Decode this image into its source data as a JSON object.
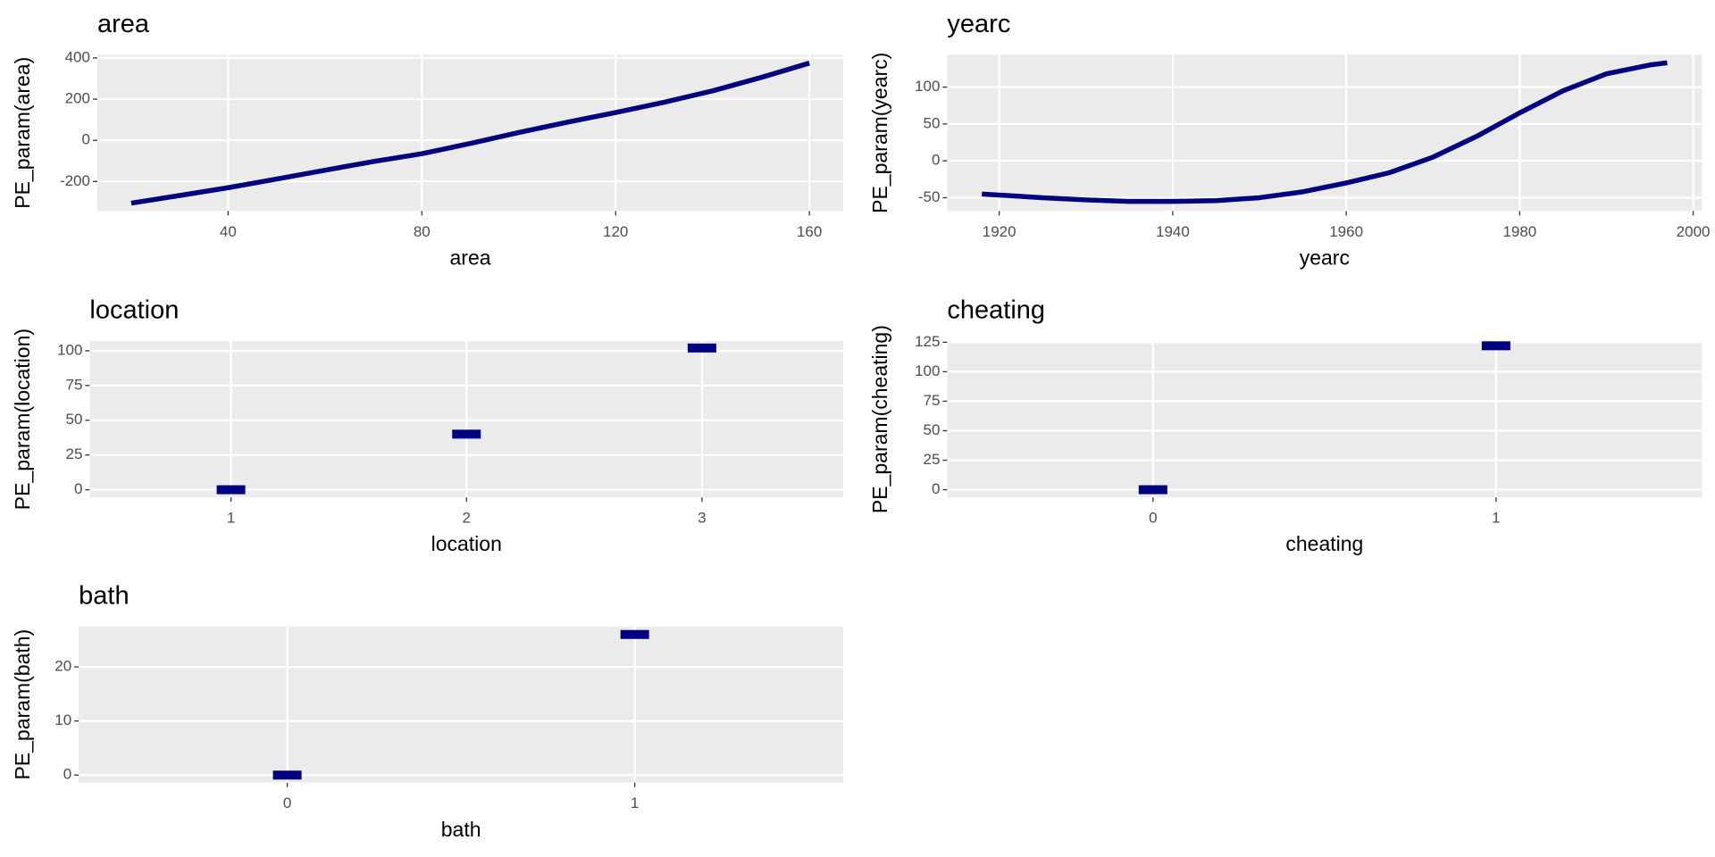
{
  "chart_data": [
    {
      "type": "line",
      "title": "area",
      "x_label": "area",
      "y_label": "PE_param(area)",
      "x": [
        20,
        30,
        40,
        50,
        60,
        70,
        80,
        90,
        100,
        110,
        120,
        130,
        140,
        150,
        160
      ],
      "values": [
        -305,
        -268,
        -230,
        -188,
        -145,
        -103,
        -65,
        -15,
        38,
        88,
        135,
        185,
        240,
        305,
        375
      ],
      "color": "#000080",
      "xlim": [
        13,
        167
      ],
      "ylim": [
        -343,
        416
      ],
      "xticks": [
        40,
        80,
        120,
        160
      ],
      "yticks": [
        -200,
        0,
        200,
        400
      ],
      "grid": true
    },
    {
      "type": "line",
      "title": "yearc",
      "x_label": "yearc",
      "y_label": "PE_param(yearc)",
      "x": [
        1918,
        1925,
        1930,
        1935,
        1940,
        1945,
        1950,
        1955,
        1960,
        1965,
        1970,
        1975,
        1980,
        1985,
        1990,
        1995,
        1997
      ],
      "values": [
        -45,
        -50,
        -53,
        -55,
        -55,
        -54,
        -50,
        -42,
        -30,
        -16,
        5,
        33,
        65,
        95,
        118,
        130,
        133
      ],
      "color": "#000080",
      "xlim": [
        1914,
        2001
      ],
      "ylim": [
        -68,
        144
      ],
      "xticks": [
        1920,
        1940,
        1960,
        1980,
        2000
      ],
      "yticks": [
        -50,
        0,
        50,
        100
      ],
      "grid": true
    },
    {
      "type": "crossbar",
      "title": "location",
      "x_label": "location",
      "y_label": "PE_param(location)",
      "categories": [
        "1",
        "2",
        "3"
      ],
      "values": [
        0,
        40,
        102
      ],
      "color": "#000080",
      "ylim": [
        -5.5,
        107
      ],
      "yticks": [
        0,
        25,
        50,
        75,
        100
      ],
      "grid": true
    },
    {
      "type": "crossbar",
      "title": "cheating",
      "x_label": "cheating",
      "y_label": "PE_param(cheating)",
      "categories": [
        "0",
        "1"
      ],
      "values": [
        0,
        122
      ],
      "color": "#000080",
      "ylim": [
        -6.5,
        126
      ],
      "yticks": [
        0,
        25,
        50,
        75,
        100,
        125
      ],
      "grid": true
    },
    {
      "type": "crossbar",
      "title": "bath",
      "x_label": "bath",
      "y_label": "PE_param(bath)",
      "categories": [
        "0",
        "1"
      ],
      "values": [
        0,
        26
      ],
      "color": "#000080",
      "ylim": [
        -1.4,
        27.5
      ],
      "yticks": [
        0,
        10,
        20
      ],
      "grid": true
    }
  ]
}
